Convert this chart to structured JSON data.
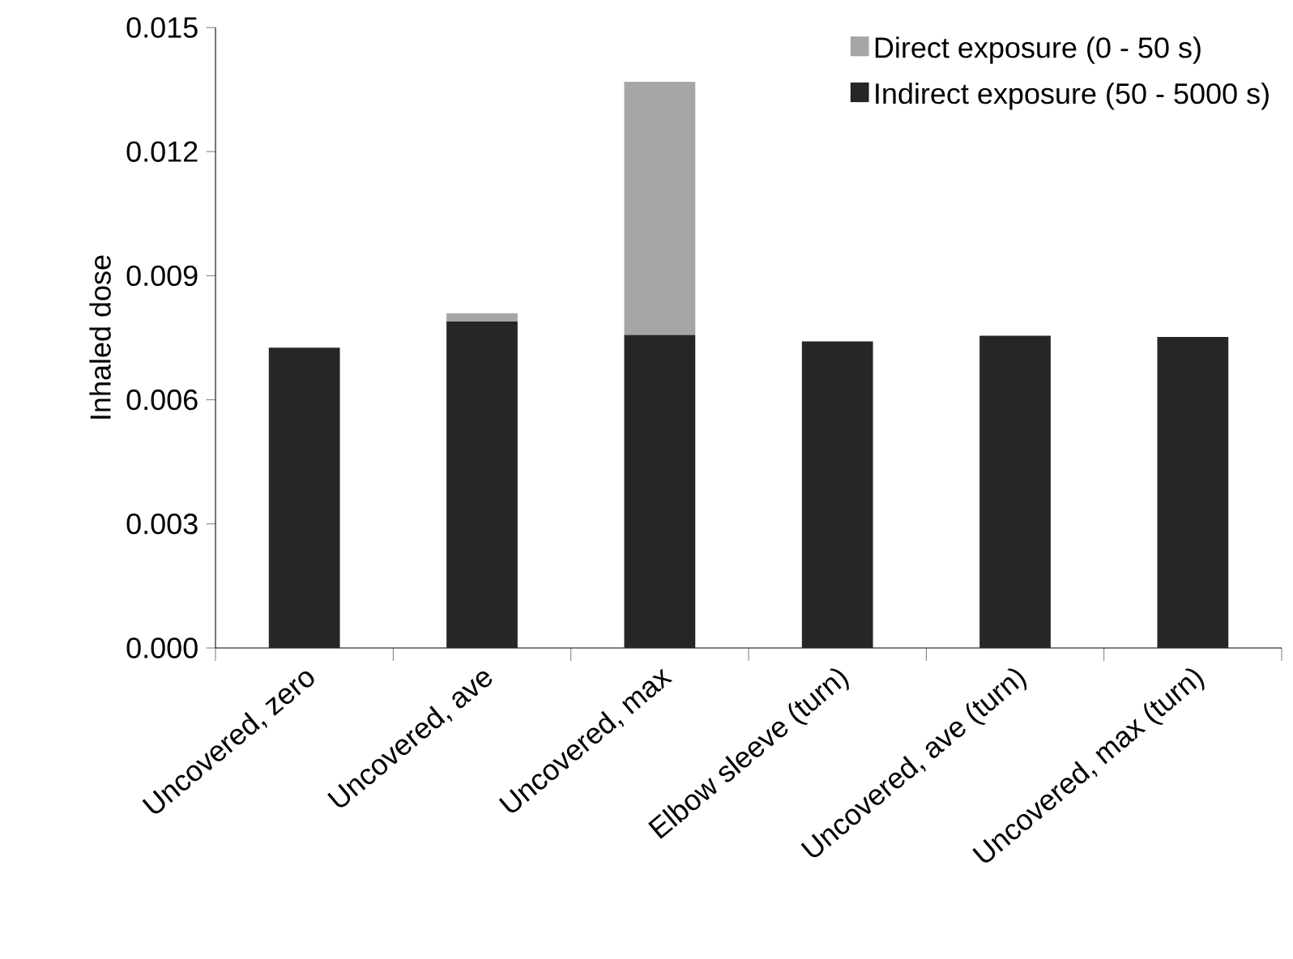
{
  "chart_data": {
    "type": "bar",
    "stacked": true,
    "ylabel": "Inhaled dose",
    "categories": [
      "Uncovered, zero",
      "Uncovered, ave",
      "Uncovered, max",
      "Elbow sleeve (turn)",
      "Uncovered, ave (turn)",
      "Uncovered, max (turn)"
    ],
    "series": [
      {
        "name": "Indirect exposure (50 - 5000 s)",
        "color": "#262626",
        "values": [
          0.00726,
          0.00789,
          0.00757,
          0.00741,
          0.00755,
          0.00752
        ]
      },
      {
        "name": "Direct exposure (0 - 50 s)",
        "color": "#a6a6a6",
        "values": [
          0,
          0.0002,
          0.00612,
          null,
          null,
          null
        ]
      }
    ],
    "ylim": [
      0,
      0.015
    ],
    "yticks": [
      {
        "value": 0,
        "label": "0.000"
      },
      0.003,
      0.006,
      0.009,
      0.012,
      0.015
    ],
    "legend": "top right"
  }
}
